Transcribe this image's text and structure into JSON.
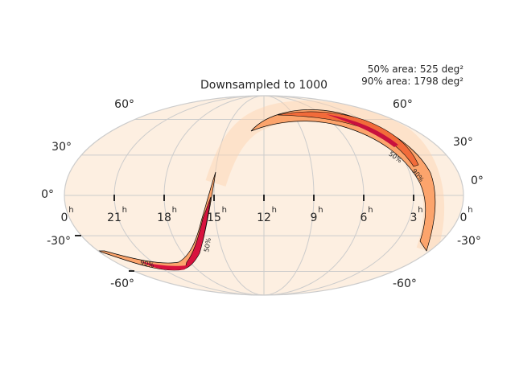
{
  "chart_data": {
    "type": "heatmap",
    "projection": "mollweide",
    "title": "Downsampled to 1000",
    "annotations": [
      "50% area: 525 deg²",
      "90% area: 1798 deg²"
    ],
    "lat_ticks": [
      "60°",
      "30°",
      "0°",
      "-30°",
      "-60°"
    ],
    "lon_ticks": [
      "0",
      "21",
      "18",
      "15",
      "12",
      "9",
      "6",
      "3",
      "0"
    ],
    "lon_unit": "h",
    "contour_labels": [
      "90%",
      "50%",
      "50%",
      "90%"
    ],
    "grid": true,
    "colors": {
      "background": "#fdefe1",
      "grid": "#cccccc",
      "prob_low": "#fcae7c",
      "prob_mid": "#f26b3a",
      "prob_high": "#d8123e",
      "prob_peak": "#b5003f",
      "contour_line": "#000000",
      "outline": "#cccccc"
    }
  }
}
